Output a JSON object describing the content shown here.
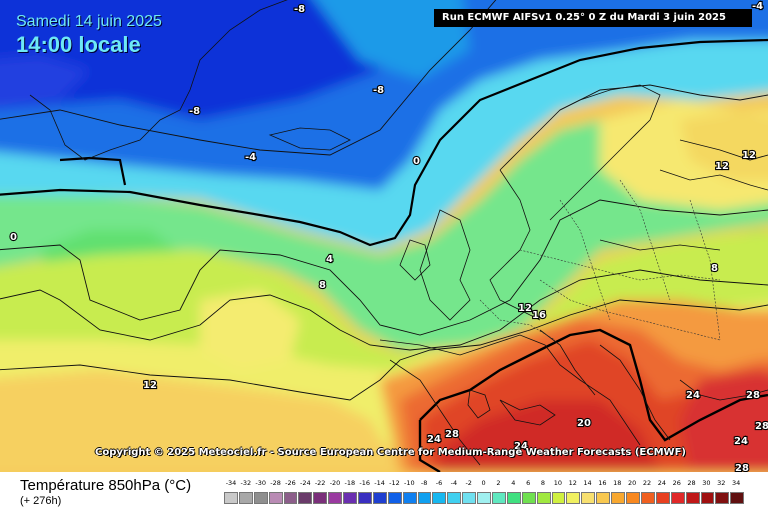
{
  "header": {
    "date": "Samedi 14 juin 2025",
    "time": "14:00 locale",
    "run": "Run ECMWF AIFSv1 0.25° 0 Z du Mardi 3 juin 2025"
  },
  "copyright": "Copyright © 2025 Meteociel.fr - Source European Centre for Medium-Range Weather Forecasts (ECMWF)",
  "legend": {
    "title": "Température 850hPa (°C)",
    "subtitle": "(+ 276h)",
    "labels": [
      "-34",
      "-32",
      "-30",
      "-28",
      "-26",
      "-24",
      "-22",
      "-20",
      "-18",
      "-16",
      "-14",
      "-12",
      "-10",
      "-8",
      "-6",
      "-4",
      "-2",
      "0",
      "2",
      "4",
      "6",
      "8",
      "10",
      "12",
      "14",
      "16",
      "18",
      "20",
      "22",
      "24",
      "26",
      "28",
      "30",
      "32",
      "34"
    ],
    "colors": [
      "#c9c9c9",
      "#a8a8a8",
      "#8f8f8f",
      "#b98bb4",
      "#8c5e8a",
      "#6a3b6a",
      "#7a2f7a",
      "#9a3aa0",
      "#6a2fb0",
      "#3a2fc0",
      "#1f3fd0",
      "#1060e8",
      "#1080f0",
      "#10a0f0",
      "#18b8f0",
      "#40d0f0",
      "#70e0f0",
      "#a0f0f0",
      "#60e8c0",
      "#40e080",
      "#70e050",
      "#a0e840",
      "#d0f040",
      "#f0f060",
      "#f8e070",
      "#f8c850",
      "#f8a830",
      "#f88820",
      "#f06020",
      "#e84020",
      "#e02828",
      "#c01818",
      "#a01010",
      "#801010",
      "#601010"
    ]
  },
  "isotherm_labels": [
    "-8",
    "-8",
    "-8",
    "-4",
    "-4",
    "0",
    "0",
    "4",
    "8",
    "8",
    "12",
    "12",
    "12",
    "12",
    "16",
    "20",
    "24",
    "24",
    "24",
    "24",
    "28",
    "28",
    "28",
    "28"
  ]
}
